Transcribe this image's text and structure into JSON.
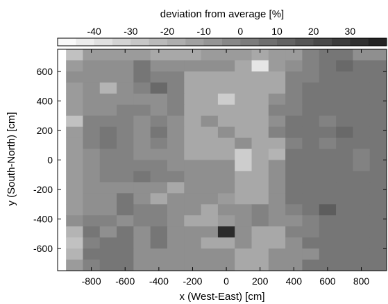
{
  "chart_data": {
    "type": "heatmap",
    "title": "",
    "xlabel": "x (West-East) [cm]",
    "ylabel": "y (South-North) [cm]",
    "colorbar": {
      "label": "deviation from average [%]",
      "range": [
        -50,
        40
      ],
      "ticks": [
        "-40",
        "-30",
        "-20",
        "-10",
        "0",
        "10",
        "20",
        "30"
      ],
      "tick_values": [
        -40,
        -30,
        -20,
        -10,
        0,
        10,
        20,
        30
      ],
      "lightest_color": "#ffffff",
      "darkest_color": "#1e1e1e"
    },
    "xlim": [
      -1000,
      950
    ],
    "ylim": [
      -750,
      750
    ],
    "x_ticks": [
      "-800",
      "-600",
      "-400",
      "-200",
      "0",
      "200",
      "400",
      "600",
      "800"
    ],
    "x_tick_values": [
      -800,
      -600,
      -400,
      -200,
      0,
      200,
      400,
      600,
      800
    ],
    "y_ticks": [
      "600",
      "400",
      "200",
      "0",
      "-200",
      "-400",
      "-600"
    ],
    "y_tick_values": [
      600,
      400,
      200,
      0,
      -200,
      -400,
      -600
    ],
    "grid": false,
    "cell_width_cm": 100,
    "cell_height_cm": 75,
    "x_bin_centers": [
      -900,
      -800,
      -700,
      -600,
      -500,
      -400,
      -300,
      -200,
      -100,
      0,
      100,
      200,
      300,
      400,
      500,
      600,
      700,
      800,
      900
    ],
    "y_bin_centers": [
      712.5,
      637.5,
      562.5,
      487.5,
      412.5,
      337.5,
      262.5,
      187.5,
      112.5,
      37.5,
      -37.5,
      -112.5,
      -187.5,
      -262.5,
      -337.5,
      -412.5,
      -487.5,
      -562.5,
      -637.5,
      -712.5
    ],
    "values": [
      [
        -25,
        -10,
        -10,
        -10,
        -10,
        -15,
        -15,
        -15,
        -10,
        -10,
        -10,
        -15,
        -10,
        -10,
        0,
        5,
        5,
        -5,
        -5
      ],
      [
        -10,
        -5,
        -5,
        -5,
        5,
        -5,
        -5,
        -5,
        -5,
        -5,
        -15,
        -40,
        -10,
        -5,
        0,
        5,
        10,
        5,
        5
      ],
      [
        -5,
        -5,
        -5,
        -5,
        5,
        0,
        0,
        -15,
        -15,
        -15,
        -15,
        -15,
        -15,
        0,
        0,
        5,
        5,
        5,
        5
      ],
      [
        -10,
        -5,
        -20,
        -5,
        0,
        10,
        0,
        -15,
        -15,
        -15,
        -15,
        -15,
        -15,
        0,
        5,
        5,
        5,
        5,
        5
      ],
      [
        -10,
        -5,
        -5,
        -5,
        -5,
        -5,
        0,
        -15,
        -15,
        -30,
        -15,
        -15,
        -5,
        0,
        5,
        5,
        5,
        5,
        5
      ],
      [
        -10,
        -5,
        -5,
        0,
        0,
        -5,
        0,
        -15,
        -15,
        -15,
        -15,
        -15,
        0,
        0,
        5,
        5,
        5,
        5,
        5
      ],
      [
        -25,
        0,
        0,
        0,
        -5,
        0,
        -5,
        -15,
        -5,
        -15,
        -15,
        -15,
        -5,
        5,
        5,
        0,
        5,
        5,
        5
      ],
      [
        -10,
        0,
        5,
        0,
        -5,
        5,
        -5,
        -15,
        -15,
        -5,
        -15,
        -15,
        0,
        5,
        5,
        5,
        10,
        5,
        5
      ],
      [
        -10,
        0,
        5,
        0,
        -5,
        0,
        -5,
        -15,
        -15,
        -15,
        -5,
        -15,
        -15,
        0,
        5,
        0,
        5,
        5,
        5
      ],
      [
        -10,
        -5,
        0,
        0,
        -5,
        -5,
        -5,
        -15,
        -15,
        -15,
        -30,
        -15,
        -20,
        5,
        5,
        5,
        5,
        0,
        5
      ],
      [
        -10,
        -5,
        0,
        0,
        0,
        0,
        -5,
        -5,
        -5,
        -5,
        -30,
        -15,
        -5,
        5,
        5,
        5,
        5,
        0,
        5
      ],
      [
        -10,
        -5,
        0,
        0,
        5,
        0,
        0,
        -5,
        -5,
        -5,
        -15,
        -15,
        -5,
        5,
        5,
        5,
        5,
        5,
        5
      ],
      [
        -10,
        -5,
        -5,
        -5,
        -5,
        -5,
        -15,
        -5,
        -5,
        -5,
        -15,
        -15,
        -5,
        5,
        5,
        5,
        5,
        5,
        5
      ],
      [
        -10,
        -5,
        -5,
        5,
        -5,
        -15,
        -5,
        -5,
        -5,
        -10,
        -15,
        -15,
        -5,
        5,
        5,
        5,
        5,
        5,
        5
      ],
      [
        -10,
        -5,
        -5,
        5,
        0,
        0,
        -5,
        -5,
        -15,
        -5,
        -5,
        0,
        -5,
        0,
        5,
        15,
        5,
        5,
        5
      ],
      [
        -5,
        0,
        0,
        -5,
        0,
        0,
        -5,
        -15,
        -15,
        -10,
        -5,
        0,
        -5,
        -5,
        0,
        5,
        5,
        5,
        5
      ],
      [
        -20,
        5,
        -5,
        5,
        -5,
        5,
        -5,
        -5,
        -5,
        35,
        -5,
        -15,
        -15,
        0,
        0,
        5,
        5,
        5,
        5
      ],
      [
        -25,
        0,
        5,
        5,
        -5,
        5,
        -5,
        -5,
        -15,
        -15,
        -5,
        -15,
        -15,
        -5,
        5,
        5,
        5,
        5,
        5
      ],
      [
        -20,
        5,
        5,
        5,
        -5,
        -5,
        -5,
        -5,
        -5,
        -5,
        -15,
        -15,
        -5,
        -5,
        -5,
        5,
        5,
        5,
        5
      ],
      [
        -10,
        0,
        5,
        5,
        -5,
        -5,
        -5,
        -5,
        -5,
        -5,
        -15,
        -15,
        -5,
        -5,
        5,
        5,
        5,
        5,
        5
      ]
    ]
  }
}
